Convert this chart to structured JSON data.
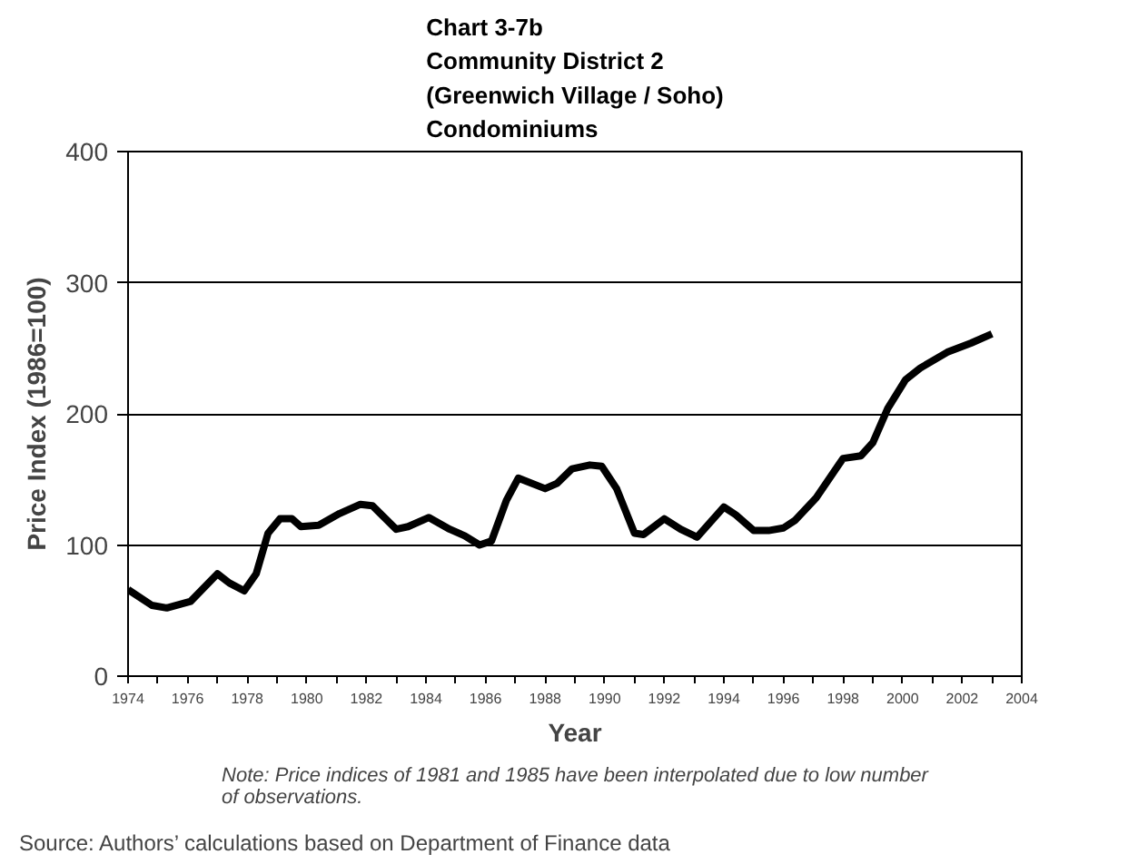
{
  "chart_data": {
    "type": "line",
    "title": "Chart 3-7b\nCommunity District 2\n(Greenwich Village / Soho)\nCondominiums",
    "xlabel": "Year",
    "ylabel": "Price Index (1986=100)",
    "annotations": [
      "Note: Price indices of 1981 and 1985 have been interpolated due to low number of observations.",
      "Source: Authors’ calculations based on Department of Finance data"
    ],
    "x": [
      1974.0,
      1974.8,
      1975.3,
      1976.1,
      1977.0,
      1977.4,
      1977.9,
      1978.3,
      1978.7,
      1979.1,
      1979.5,
      1979.8,
      1980.4,
      1981.1,
      1981.8,
      1982.2,
      1983.0,
      1983.4,
      1984.1,
      1984.8,
      1985.3,
      1985.8,
      1986.2,
      1986.7,
      1987.1,
      1988.0,
      1988.4,
      1988.9,
      1989.5,
      1989.9,
      1990.4,
      1991.0,
      1991.3,
      1992.0,
      1992.55,
      1993.1,
      1994.0,
      1994.4,
      1995.0,
      1995.5,
      1996.0,
      1996.4,
      1997.1,
      1998.0,
      1998.6,
      1999.0,
      1999.5,
      2000.1,
      2000.6,
      2001.5,
      2002.3,
      2003.0
    ],
    "series": [
      {
        "color": "#000000",
        "values": [
          66,
          54,
          52,
          57,
          78,
          71,
          65,
          78,
          109,
          120,
          120,
          114,
          115,
          124,
          131,
          130,
          112,
          114,
          121,
          112,
          107,
          100,
          103,
          134,
          151,
          143,
          147,
          158,
          161,
          160,
          143,
          109,
          108,
          120,
          112,
          106,
          129,
          123,
          111,
          111,
          113,
          119,
          136,
          166,
          168,
          178,
          204,
          226,
          235,
          247,
          254,
          261
        ]
      }
    ],
    "xlim": [
      1974,
      2004
    ],
    "ylim": [
      0,
      400
    ],
    "xticks": [
      1974,
      {
        "value": 1975,
        "label": null
      },
      1976,
      {
        "value": 1977,
        "label": null
      },
      1978,
      {
        "value": 1979,
        "label": null
      },
      1980,
      {
        "value": 1981,
        "label": null
      },
      1982,
      {
        "value": 1983,
        "label": null
      },
      1984,
      {
        "value": 1985,
        "label": null
      },
      1986,
      {
        "value": 1987,
        "label": null
      },
      1988,
      {
        "value": 1989,
        "label": null
      },
      1990,
      {
        "value": 1991,
        "label": null
      },
      1992,
      {
        "value": 1993,
        "label": null
      },
      1994,
      {
        "value": 1995,
        "label": null
      },
      1996,
      {
        "value": 1997,
        "label": null
      },
      1998,
      {
        "value": 1999,
        "label": null
      },
      2000,
      {
        "value": 2001,
        "label": null
      },
      2002,
      {
        "value": 2003,
        "label": null
      },
      2004
    ],
    "yticks": [
      0,
      100,
      200,
      300,
      400
    ],
    "grid": "y",
    "marker": "none",
    "line_style": "solid"
  }
}
